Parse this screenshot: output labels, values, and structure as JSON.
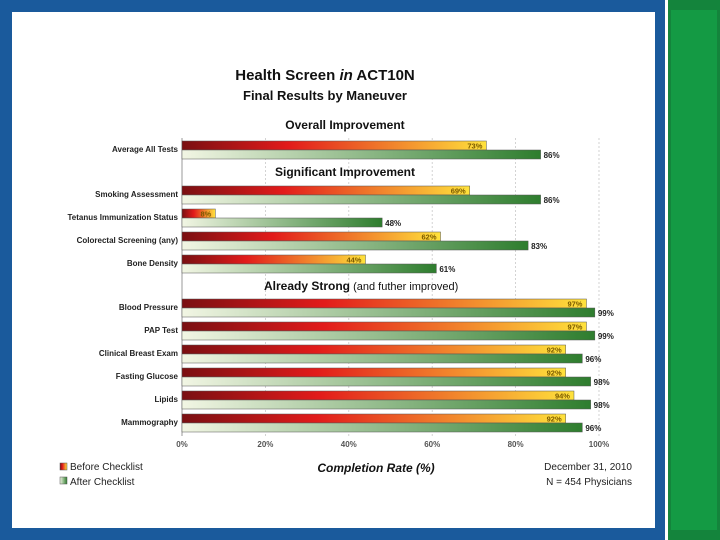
{
  "colors": {
    "frame": "#1a5a9c",
    "side_bar": "#14843c",
    "before_dark": "#7a0f12",
    "before_mid": "#e21b1b",
    "before_light": "#ffe23c",
    "after_light": "#f2f6e4",
    "after_dark": "#2e7d2e"
  },
  "chart_data": {
    "type": "bar",
    "orientation": "horizontal",
    "title_parts": [
      "Health Screen ",
      "in",
      " ACT10N"
    ],
    "subtitle": "Final Results by Maneuver",
    "xlabel": "Completion Rate (%)",
    "xlim": [
      0,
      100
    ],
    "x_ticks": [
      "0%",
      "20%",
      "40%",
      "60%",
      "80%",
      "100%"
    ],
    "grid": true,
    "legend_position": "bottom-left",
    "series": [
      {
        "name": "Before Checklist"
      },
      {
        "name": "After Checklist"
      }
    ],
    "groups": [
      {
        "header": "Overall Improvement",
        "header_note": "",
        "items": [
          {
            "label": "Average All Tests",
            "before": 73,
            "after": 86,
            "before_label": "73%",
            "after_label": "86%"
          }
        ]
      },
      {
        "header": "Significant Improvement",
        "header_note": "",
        "items": [
          {
            "label": "Smoking Assessment",
            "before": 69,
            "after": 86,
            "before_label": "69%",
            "after_label": "86%"
          },
          {
            "label": "Tetanus Immunization Status",
            "before": 8,
            "after": 48,
            "before_label": "8%",
            "after_label": "48%"
          },
          {
            "label": "Colorectal Screening (any)",
            "before": 62,
            "after": 83,
            "before_label": "62%",
            "after_label": "83%"
          },
          {
            "label": "Bone Density",
            "before": 44,
            "after": 61,
            "before_label": "44%",
            "after_label": "61%"
          }
        ]
      },
      {
        "header": "Already Strong",
        "header_note": " (and futher improved)",
        "items": [
          {
            "label": "Blood Pressure",
            "before": 97,
            "after": 99,
            "before_label": "97%",
            "after_label": "99%"
          },
          {
            "label": "PAP Test",
            "before": 97,
            "after": 99,
            "before_label": "97%",
            "after_label": "99%"
          },
          {
            "label": "Clinical Breast Exam",
            "before": 92,
            "after": 96,
            "before_label": "92%",
            "after_label": "96%"
          },
          {
            "label": "Fasting Glucose",
            "before": 92,
            "after": 98,
            "before_label": "92%",
            "after_label": "98%"
          },
          {
            "label": "Lipids",
            "before": 94,
            "after": 98,
            "before_label": "94%",
            "after_label": "98%"
          },
          {
            "label": "Mammography",
            "before": 92,
            "after": 96,
            "before_label": "92%",
            "after_label": "96%"
          }
        ]
      }
    ],
    "footnote_lines": [
      "December 31, 2010",
      "N = 454 Physicians"
    ]
  }
}
